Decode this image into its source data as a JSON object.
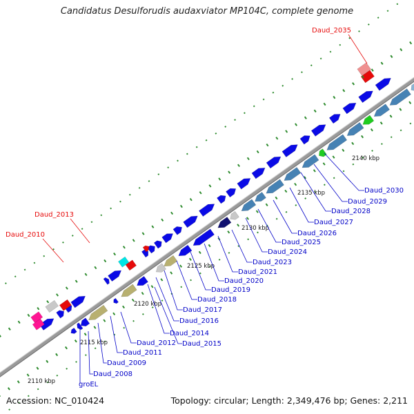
{
  "title": "Candidatus Desulforudis audaxviator MP104C, complete genome",
  "footer": {
    "accession": "Accession: NC_010424",
    "summary": "Topology: circular; Length: 2,349,476 bp; Genes: 2,211"
  },
  "colors": {
    "gene_forward": "#0a0ae6",
    "gene_reverse": "#4682b4",
    "rna": "#e60a0a",
    "label_red": "#e60a0a",
    "label_blue": "#0000c8",
    "backbone": "#999999",
    "tick": "#2e8b2e"
  },
  "scale_labels": [
    "2110 kbp",
    "2115 kbp",
    "2120 kbp",
    "2125 kbp",
    "2130 kbp",
    "2135 kbp",
    "2140 kbp"
  ],
  "labels": [
    {
      "text": "Daud_2035",
      "color": "red"
    },
    {
      "text": "Daud_2013",
      "color": "red"
    },
    {
      "text": "Daud_2010",
      "color": "red"
    },
    {
      "text": "Daud_2030",
      "color": "blue"
    },
    {
      "text": "Daud_2029",
      "color": "blue"
    },
    {
      "text": "Daud_2028",
      "color": "blue"
    },
    {
      "text": "Daud_2027",
      "color": "blue"
    },
    {
      "text": "Daud_2026",
      "color": "blue"
    },
    {
      "text": "Daud_2025",
      "color": "blue"
    },
    {
      "text": "Daud_2024",
      "color": "blue"
    },
    {
      "text": "Daud_2023",
      "color": "blue"
    },
    {
      "text": "Daud_2021",
      "color": "blue"
    },
    {
      "text": "Daud_2020",
      "color": "blue"
    },
    {
      "text": "Daud_2019",
      "color": "blue"
    },
    {
      "text": "Daud_2018",
      "color": "blue"
    },
    {
      "text": "Daud_2017",
      "color": "blue"
    },
    {
      "text": "Daud_2016",
      "color": "blue"
    },
    {
      "text": "Daud_2015",
      "color": "blue"
    },
    {
      "text": "Daud_2014",
      "color": "blue"
    },
    {
      "text": "Daud_2012",
      "color": "blue"
    },
    {
      "text": "Daud_2011",
      "color": "blue"
    },
    {
      "text": "Daud_2009",
      "color": "blue"
    },
    {
      "text": "Daud_2008",
      "color": "blue"
    },
    {
      "text": "groEL",
      "color": "blue"
    }
  ]
}
